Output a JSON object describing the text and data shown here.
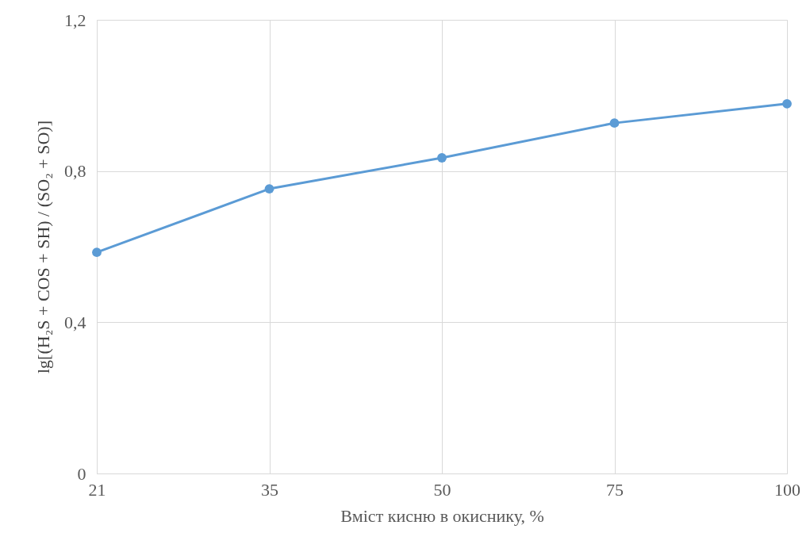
{
  "chart_data": {
    "type": "line",
    "xlabel": "Вміст кисню в окиснику, %",
    "ylabel": "lg[(H₂S + COS + SH) / (SO₂ + SO)]",
    "categories": [
      "21",
      "35",
      "50",
      "75",
      "100"
    ],
    "series": [
      {
        "color": "#5b9bd5",
        "values": [
          0.585,
          0.753,
          0.835,
          0.927,
          0.978
        ]
      }
    ],
    "ylim": [
      0,
      1.2
    ],
    "yticks": [
      0,
      {
        "value": 0.4,
        "label": "0,4"
      },
      {
        "value": 0.8,
        "label": "0,8"
      },
      {
        "value": 1.2,
        "label": "1,2"
      }
    ],
    "grid": true,
    "marker": "circle",
    "line_style": "solid",
    "legend": false
  }
}
